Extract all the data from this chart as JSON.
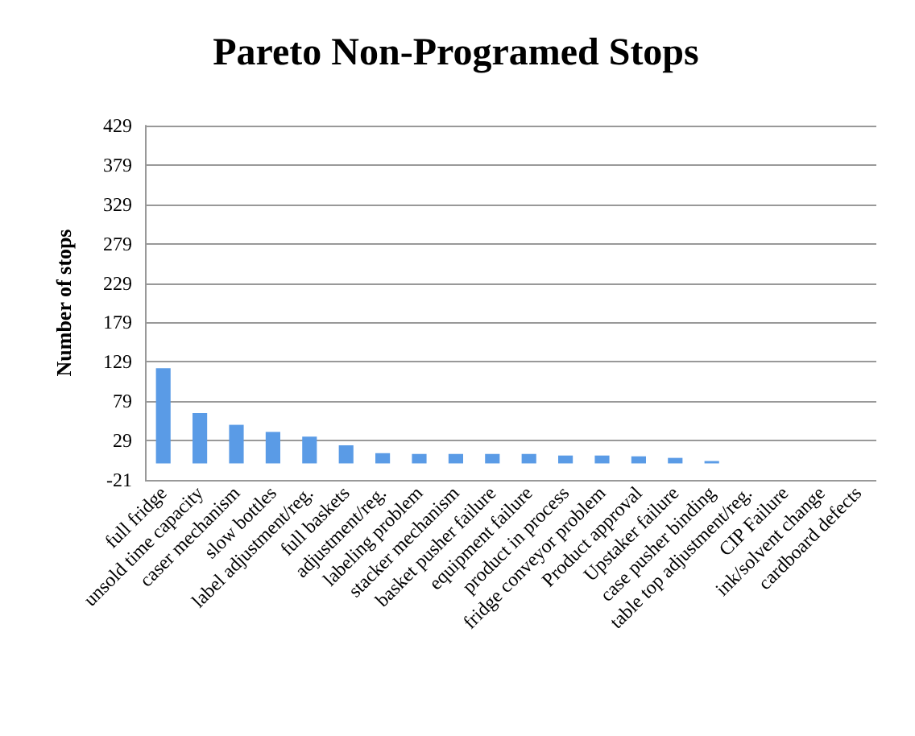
{
  "chart_data": {
    "type": "bar",
    "title": "Pareto Non-Programed Stops",
    "ylabel": "Number of stops",
    "categories": [
      "full fridge",
      "unsold time capacity",
      "caser mechanism",
      "slow bottles",
      "label adjustment/reg.",
      "full baskets",
      "adjustment/reg.",
      "labeling problem",
      "stacker mechanism",
      "basket pusher failure",
      "equipment failure",
      "product in process",
      "fridge conveyor problem",
      "Product approval",
      "Upstaker failure",
      "case pusher binding",
      "table top adjustment/reg.",
      "CIP Failure",
      "ink/solvent change",
      "cardboard defects"
    ],
    "values": [
      121,
      64,
      49,
      40,
      34,
      23,
      13,
      12,
      12,
      12,
      12,
      10,
      10,
      9,
      7,
      3,
      0,
      0,
      0,
      0
    ],
    "color": "#5a9be6",
    "ylim": [
      -21,
      429
    ],
    "yticks": [
      -21,
      29,
      79,
      129,
      179,
      229,
      279,
      329,
      379,
      429
    ],
    "grid": "y"
  }
}
